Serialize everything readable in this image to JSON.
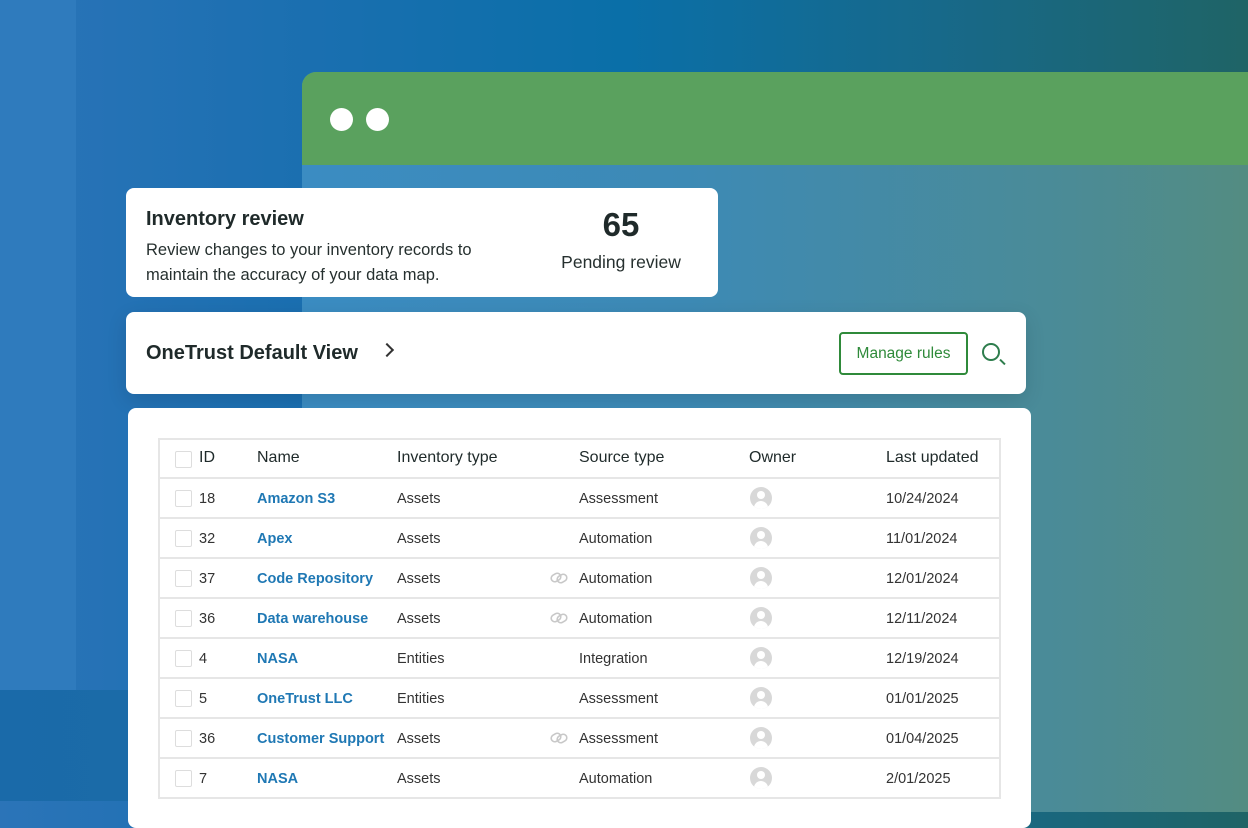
{
  "review": {
    "title": "Inventory review",
    "description": "Review changes to your inventory records to maintain the accuracy of your data map.",
    "count": "65",
    "count_label": "Pending review"
  },
  "view": {
    "title": "OneTrust Default View",
    "manage_rules": "Manage rules"
  },
  "colors": {
    "window_header": "#5aa15e",
    "link": "#1f78b4",
    "button": "#2f8a3a"
  },
  "table": {
    "headers": {
      "id": "ID",
      "name": "Name",
      "inventory_type": "Inventory type",
      "source_type": "Source type",
      "owner": "Owner",
      "last_updated": "Last updated"
    },
    "rows": [
      {
        "id": "18",
        "name": "Amazon S3",
        "inventory_type": "Assets",
        "source_type": "Assessment",
        "linked": false,
        "last_updated": "10/24/2024"
      },
      {
        "id": "32",
        "name": "Apex",
        "inventory_type": "Assets",
        "source_type": "Automation",
        "linked": false,
        "last_updated": "11/01/2024"
      },
      {
        "id": "37",
        "name": "Code Repository",
        "inventory_type": "Assets",
        "source_type": "Automation",
        "linked": true,
        "last_updated": "12/01/2024"
      },
      {
        "id": "36",
        "name": "Data warehouse",
        "inventory_type": "Assets",
        "source_type": "Automation",
        "linked": true,
        "last_updated": "12/11/2024"
      },
      {
        "id": "4",
        "name": "NASA",
        "inventory_type": "Entities",
        "source_type": "Integration",
        "linked": false,
        "last_updated": "12/19/2024"
      },
      {
        "id": "5",
        "name": "OneTrust LLC",
        "inventory_type": "Entities",
        "source_type": "Assessment",
        "linked": false,
        "last_updated": "01/01/2025"
      },
      {
        "id": "36",
        "name": "Customer Support",
        "inventory_type": "Assets",
        "source_type": "Assessment",
        "linked": true,
        "last_updated": "01/04/2025"
      },
      {
        "id": "7",
        "name": "NASA",
        "inventory_type": "Assets",
        "source_type": "Automation",
        "linked": false,
        "last_updated": "2/01/2025"
      }
    ]
  }
}
